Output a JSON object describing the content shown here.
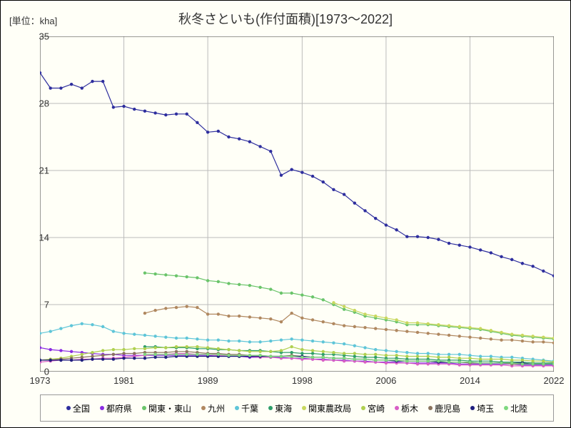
{
  "chart": {
    "type": "line",
    "title": "秋冬さといも(作付面積)[1973～2022]",
    "ylabel": "[単位：kha]",
    "title_fontsize": 18,
    "label_fontsize": 13,
    "background_color": "#fffff7",
    "grid_color": "#bbbbbb",
    "axis_color": "#333333",
    "xlim": [
      1973,
      2022
    ],
    "ylim": [
      0,
      35
    ],
    "xtick_positions": [
      1973,
      1981,
      1989,
      1998,
      2006,
      2014,
      2022
    ],
    "xtick_labels": [
      "1973",
      "1981",
      "1989",
      "1998",
      "2006",
      "2014",
      "2022"
    ],
    "ytick_positions": [
      0,
      7,
      14,
      21,
      28,
      35
    ],
    "ytick_labels": [
      "0",
      "7",
      "14",
      "21",
      "28",
      "35"
    ],
    "line_width": 1.2,
    "marker_size": 2.2,
    "legend_position": "bottom",
    "legend_border_color": "#999999",
    "series": [
      {
        "name": "全国",
        "label": "全国",
        "color": "#2e2e9e",
        "x": [
          1973,
          1974,
          1975,
          1976,
          1977,
          1978,
          1979,
          1980,
          1981,
          1982,
          1983,
          1984,
          1985,
          1986,
          1987,
          1988,
          1989,
          1990,
          1991,
          1992,
          1993,
          1994,
          1995,
          1996,
          1997,
          1998,
          1999,
          2000,
          2001,
          2002,
          2003,
          2004,
          2005,
          2006,
          2007,
          2008,
          2009,
          2010,
          2011,
          2012,
          2013,
          2014,
          2015,
          2016,
          2017,
          2018,
          2019,
          2020,
          2021,
          2022
        ],
        "y": [
          31.2,
          29.6,
          29.6,
          30.0,
          29.6,
          30.3,
          30.3,
          27.6,
          27.7,
          27.4,
          27.2,
          27.0,
          26.8,
          26.9,
          26.9,
          26.0,
          25.0,
          25.1,
          24.5,
          24.3,
          24.0,
          23.5,
          23.0,
          20.5,
          21.1,
          20.8,
          20.4,
          19.8,
          19.0,
          18.5,
          17.6,
          16.8,
          16.0,
          15.3,
          14.8,
          14.1,
          14.1,
          14.0,
          13.8,
          13.4,
          13.2,
          13.0,
          12.7,
          12.4,
          12.0,
          11.7,
          11.3,
          11.0,
          10.5,
          10.0
        ]
      },
      {
        "name": "都府県",
        "label": "都府県",
        "color": "#8a2be2",
        "x": [
          1973,
          1974,
          1975,
          1976,
          1977,
          1978,
          1979,
          1980,
          1981,
          1982,
          1983,
          1984,
          1985,
          1986,
          1987,
          1988,
          1989,
          1990,
          1991,
          1992,
          1993,
          1994,
          1995,
          1996,
          1997,
          1998,
          1999,
          2000,
          2001,
          2002,
          2003,
          2004,
          2005,
          2006,
          2007,
          2008,
          2009,
          2010,
          2011,
          2012,
          2013,
          2014,
          2015,
          2016,
          2017,
          2018,
          2019,
          2020,
          2021,
          2022
        ],
        "y": [
          2.5,
          2.3,
          2.2,
          2.1,
          2.0,
          1.9,
          1.8,
          1.8,
          1.7,
          1.7,
          1.7,
          1.7,
          1.7,
          1.7,
          1.7,
          1.7,
          1.7,
          1.6,
          1.6,
          1.6,
          1.5,
          1.5,
          1.5,
          1.5,
          1.4,
          1.4,
          1.3,
          1.3,
          1.2,
          1.2,
          1.1,
          1.1,
          1.0,
          1.0,
          1.0,
          0.9,
          0.9,
          0.9,
          0.9,
          0.9,
          0.8,
          0.8,
          0.8,
          0.8,
          0.8,
          0.8,
          0.7,
          0.7,
          0.7,
          0.7
        ]
      },
      {
        "name": "関東・東山",
        "label": "関東・東山",
        "color": "#6ac46a",
        "x": [
          1983,
          1984,
          1985,
          1986,
          1987,
          1988,
          1989,
          1990,
          1991,
          1992,
          1993,
          1994,
          1995,
          1996,
          1997,
          1998,
          1999,
          2000,
          2001,
          2002,
          2003,
          2004,
          2005,
          2006,
          2007,
          2008,
          2009,
          2010,
          2011,
          2012,
          2013,
          2014,
          2015,
          2016,
          2017,
          2018,
          2019,
          2020,
          2021,
          2022
        ],
        "y": [
          10.3,
          10.2,
          10.1,
          10.0,
          9.9,
          9.8,
          9.5,
          9.4,
          9.2,
          9.1,
          9.0,
          8.8,
          8.6,
          8.2,
          8.2,
          8.0,
          7.8,
          7.5,
          7.0,
          6.5,
          6.2,
          5.8,
          5.6,
          5.4,
          5.2,
          4.9,
          4.9,
          4.9,
          4.8,
          4.7,
          4.6,
          4.5,
          4.4,
          4.2,
          4.0,
          3.8,
          3.7,
          3.6,
          3.5,
          3.4
        ]
      },
      {
        "name": "九州",
        "label": "九州",
        "color": "#b08860",
        "x": [
          1983,
          1984,
          1985,
          1986,
          1987,
          1988,
          1989,
          1990,
          1991,
          1992,
          1993,
          1994,
          1995,
          1996,
          1997,
          1998,
          1999,
          2000,
          2001,
          2002,
          2003,
          2004,
          2005,
          2006,
          2007,
          2008,
          2009,
          2010,
          2011,
          2012,
          2013,
          2014,
          2015,
          2016,
          2017,
          2018,
          2019,
          2020,
          2021,
          2022
        ],
        "y": [
          6.1,
          6.4,
          6.6,
          6.7,
          6.8,
          6.7,
          6.0,
          6.0,
          5.8,
          5.8,
          5.7,
          5.6,
          5.5,
          5.2,
          6.1,
          5.6,
          5.4,
          5.2,
          5.0,
          4.8,
          4.7,
          4.6,
          4.5,
          4.4,
          4.3,
          4.2,
          4.1,
          4.0,
          3.9,
          3.8,
          3.7,
          3.6,
          3.5,
          3.4,
          3.3,
          3.3,
          3.2,
          3.1,
          3.1,
          3.0
        ]
      },
      {
        "name": "千葉",
        "label": "千葉",
        "color": "#5ec5d8",
        "x": [
          1973,
          1974,
          1975,
          1976,
          1977,
          1978,
          1979,
          1980,
          1981,
          1982,
          1983,
          1984,
          1985,
          1986,
          1987,
          1988,
          1989,
          1990,
          1991,
          1992,
          1993,
          1994,
          1995,
          1996,
          1997,
          1998,
          1999,
          2000,
          2001,
          2002,
          2003,
          2004,
          2005,
          2006,
          2007,
          2008,
          2009,
          2010,
          2011,
          2012,
          2013,
          2014,
          2015,
          2016,
          2017,
          2018,
          2019,
          2020,
          2021,
          2022
        ],
        "y": [
          4.0,
          4.2,
          4.5,
          4.8,
          5.0,
          4.9,
          4.7,
          4.2,
          4.0,
          3.9,
          3.8,
          3.7,
          3.6,
          3.5,
          3.5,
          3.4,
          3.3,
          3.3,
          3.2,
          3.2,
          3.1,
          3.1,
          3.2,
          3.3,
          3.4,
          3.3,
          3.2,
          3.1,
          3.0,
          2.9,
          2.7,
          2.5,
          2.3,
          2.2,
          2.1,
          2.0,
          1.9,
          1.9,
          1.8,
          1.8,
          1.8,
          1.7,
          1.6,
          1.6,
          1.5,
          1.5,
          1.4,
          1.3,
          1.2,
          1.1
        ]
      },
      {
        "name": "東海",
        "label": "東海",
        "color": "#2e9e6a",
        "x": [
          1983,
          1984,
          1985,
          1986,
          1987,
          1988,
          1989,
          1990,
          1991,
          1992,
          1993,
          1994,
          1995,
          1996,
          1997,
          1998,
          1999,
          2000,
          2001,
          2002,
          2003,
          2004,
          2005,
          2006,
          2007,
          2008,
          2009,
          2010,
          2011,
          2012,
          2013,
          2014,
          2015,
          2016,
          2017,
          2018,
          2019,
          2020,
          2021,
          2022
        ],
        "y": [
          2.6,
          2.6,
          2.5,
          2.5,
          2.5,
          2.4,
          2.4,
          2.3,
          2.3,
          2.2,
          2.2,
          2.2,
          2.1,
          2.0,
          2.0,
          1.9,
          1.9,
          1.8,
          1.8,
          1.7,
          1.6,
          1.5,
          1.5,
          1.4,
          1.4,
          1.3,
          1.3,
          1.3,
          1.2,
          1.2,
          1.2,
          1.1,
          1.1,
          1.1,
          1.0,
          1.0,
          1.0,
          0.9,
          0.9,
          0.9
        ]
      },
      {
        "name": "関東農政局",
        "label": "関東農政局",
        "color": "#c8d85e",
        "x": [
          2001,
          2002,
          2003,
          2004,
          2005,
          2006,
          2007,
          2008,
          2009,
          2010,
          2011,
          2012,
          2013,
          2014,
          2015,
          2016,
          2017,
          2018,
          2019,
          2020,
          2021,
          2022
        ],
        "y": [
          7.2,
          6.8,
          6.4,
          6.0,
          5.8,
          5.6,
          5.4,
          5.1,
          5.1,
          5.0,
          4.9,
          4.8,
          4.7,
          4.6,
          4.5,
          4.3,
          4.1,
          3.9,
          3.8,
          3.7,
          3.6,
          3.5
        ]
      },
      {
        "name": "宮崎",
        "label": "宮崎",
        "color": "#b0d050",
        "x": [
          1973,
          1974,
          1975,
          1976,
          1977,
          1978,
          1979,
          1980,
          1981,
          1982,
          1983,
          1984,
          1985,
          1986,
          1987,
          1988,
          1989,
          1990,
          1991,
          1992,
          1993,
          1994,
          1995,
          1996,
          1997,
          1998,
          1999,
          2000,
          2001,
          2002,
          2003,
          2004,
          2005,
          2006,
          2007,
          2008,
          2009,
          2010,
          2011,
          2012,
          2013,
          2014,
          2015,
          2016,
          2017,
          2018,
          2019,
          2020,
          2021,
          2022
        ],
        "y": [
          1.2,
          1.3,
          1.4,
          1.6,
          1.8,
          2.0,
          2.2,
          2.3,
          2.3,
          2.4,
          2.4,
          2.5,
          2.5,
          2.6,
          2.6,
          2.6,
          2.5,
          2.4,
          2.3,
          2.2,
          2.1,
          2.1,
          2.1,
          2.2,
          2.6,
          2.3,
          2.2,
          2.1,
          2.0,
          1.9,
          1.9,
          1.8,
          1.8,
          1.7,
          1.7,
          1.6,
          1.6,
          1.6,
          1.5,
          1.5,
          1.4,
          1.4,
          1.3,
          1.3,
          1.3,
          1.2,
          1.2,
          1.1,
          1.1,
          1.0
        ]
      },
      {
        "name": "栃木",
        "label": "栃木",
        "color": "#d85ec5",
        "x": [
          1973,
          1974,
          1975,
          1976,
          1977,
          1978,
          1979,
          1980,
          1981,
          1982,
          1983,
          1984,
          1985,
          1986,
          1987,
          1988,
          1989,
          1990,
          1991,
          1992,
          1993,
          1994,
          1995,
          1996,
          1997,
          1998,
          1999,
          2000,
          2001,
          2002,
          2003,
          2004,
          2005,
          2006,
          2007,
          2008,
          2009,
          2010,
          2011,
          2012,
          2013,
          2014,
          2015,
          2016,
          2017,
          2018,
          2019,
          2020,
          2021,
          2022
        ],
        "y": [
          1.0,
          1.1,
          1.2,
          1.2,
          1.3,
          1.3,
          1.4,
          1.4,
          1.5,
          1.6,
          1.7,
          1.8,
          1.8,
          1.9,
          1.9,
          1.8,
          1.8,
          1.7,
          1.7,
          1.6,
          1.6,
          1.5,
          1.5,
          1.4,
          1.4,
          1.3,
          1.3,
          1.2,
          1.2,
          1.1,
          1.1,
          1.0,
          1.0,
          0.9,
          0.9,
          0.9,
          0.8,
          0.8,
          0.8,
          0.8,
          0.7,
          0.7,
          0.7,
          0.7,
          0.7,
          0.6,
          0.6,
          0.6,
          0.6,
          0.6
        ]
      },
      {
        "name": "鹿児島",
        "label": "鹿児島",
        "color": "#8a735e",
        "x": [
          1973,
          1974,
          1975,
          1976,
          1977,
          1978,
          1979,
          1980,
          1981,
          1982,
          1983,
          1984,
          1985,
          1986,
          1987,
          1988,
          1989,
          1990,
          1991,
          1992,
          1993,
          1994,
          1995,
          1996,
          1997,
          1998,
          1999,
          2000,
          2001,
          2002,
          2003,
          2004,
          2005,
          2006,
          2007,
          2008,
          2009,
          2010,
          2011,
          2012,
          2013,
          2014,
          2015,
          2016,
          2017,
          2018,
          2019,
          2020,
          2021,
          2022
        ],
        "y": [
          1.2,
          1.2,
          1.3,
          1.4,
          1.5,
          1.6,
          1.7,
          1.8,
          1.9,
          1.9,
          2.0,
          2.0,
          2.0,
          2.1,
          2.1,
          2.0,
          1.9,
          1.9,
          1.8,
          1.8,
          1.7,
          1.7,
          1.6,
          1.6,
          1.7,
          1.6,
          1.5,
          1.5,
          1.4,
          1.4,
          1.3,
          1.3,
          1.2,
          1.2,
          1.2,
          1.1,
          1.1,
          1.1,
          1.0,
          1.0,
          1.0,
          0.9,
          0.9,
          0.9,
          0.9,
          0.8,
          0.8,
          0.8,
          0.8,
          0.8
        ]
      },
      {
        "name": "埼玉",
        "label": "埼玉",
        "color": "#1e1e7e",
        "x": [
          1973,
          1974,
          1975,
          1976,
          1977,
          1978,
          1979,
          1980,
          1981,
          1982,
          1983,
          1984,
          1985,
          1986,
          1987,
          1988,
          1989,
          1990,
          1991,
          1992,
          1993,
          1994,
          1995,
          1996,
          1997,
          1998,
          1999,
          2000,
          2001,
          2002,
          2003,
          2004,
          2005,
          2006,
          2007,
          2008,
          2009,
          2010,
          2011,
          2012,
          2013,
          2014,
          2015,
          2016,
          2017,
          2018,
          2019,
          2020,
          2021,
          2022
        ],
        "y": [
          1.2,
          1.2,
          1.2,
          1.2,
          1.2,
          1.3,
          1.3,
          1.3,
          1.4,
          1.4,
          1.4,
          1.5,
          1.5,
          1.6,
          1.6,
          1.6,
          1.6,
          1.6,
          1.6,
          1.6,
          1.6,
          1.6,
          1.6,
          1.6,
          1.6,
          1.6,
          1.5,
          1.5,
          1.4,
          1.4,
          1.3,
          1.3,
          1.2,
          1.2,
          1.1,
          1.1,
          1.1,
          1.1,
          1.0,
          1.0,
          1.0,
          1.0,
          0.9,
          0.9,
          0.9,
          0.9,
          0.9,
          0.8,
          0.8,
          0.8
        ]
      },
      {
        "name": "北陸",
        "label": "北陸",
        "color": "#7ed87e",
        "x": [
          1983,
          1984,
          1985,
          1986,
          1987,
          1988,
          1989,
          1990,
          1991,
          1992,
          1993,
          1994,
          1995,
          1996,
          1997,
          1998,
          1999,
          2000,
          2001,
          2002,
          2003,
          2004,
          2005,
          2006,
          2007,
          2008,
          2009,
          2010,
          2011,
          2012,
          2013,
          2014,
          2015,
          2016,
          2017,
          2018,
          2019,
          2020,
          2021,
          2022
        ],
        "y": [
          1.8,
          1.8,
          1.8,
          1.8,
          1.8,
          1.8,
          1.8,
          1.8,
          1.7,
          1.7,
          1.7,
          1.7,
          1.6,
          1.6,
          1.6,
          1.5,
          1.5,
          1.5,
          1.4,
          1.4,
          1.3,
          1.3,
          1.2,
          1.2,
          1.2,
          1.1,
          1.1,
          1.1,
          1.1,
          1.0,
          1.0,
          1.0,
          0.9,
          0.9,
          0.9,
          0.9,
          0.8,
          0.8,
          0.8,
          0.8
        ]
      }
    ]
  }
}
